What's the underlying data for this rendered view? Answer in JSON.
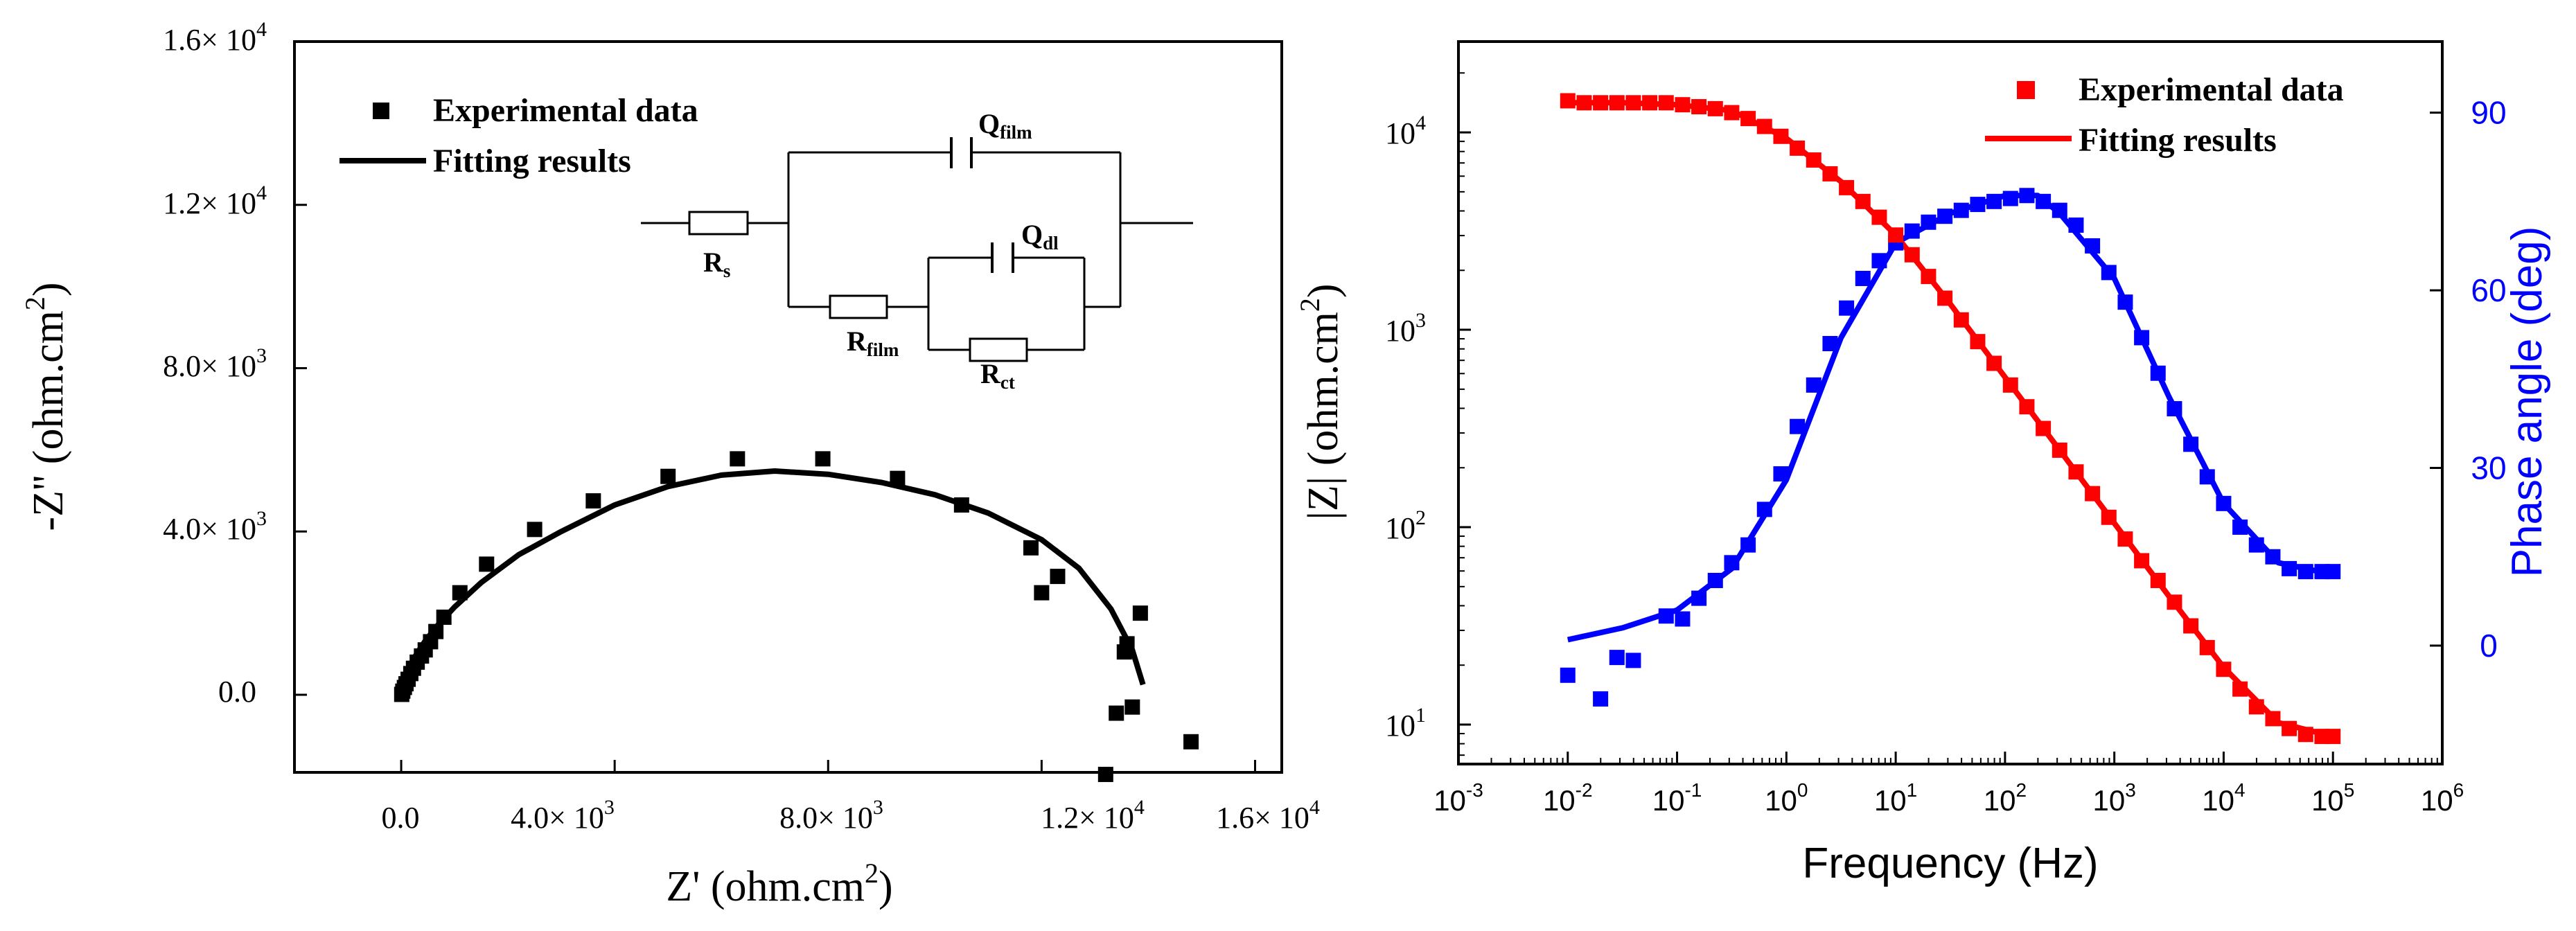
{
  "chart_data": [
    {
      "type": "scatter",
      "title": "",
      "xlabel_main": "Z'",
      "xlabel_unit": "(ohm.cm",
      "xlabel_sup": "2",
      "xlabel_close": ")",
      "ylabel_main": "-Z''",
      "ylabel_unit": "(ohm.cm",
      "ylabel_sup": "2",
      "ylabel_close": ")",
      "xlim": [
        -2000,
        16500
      ],
      "ylim": [
        -1900,
        16000
      ],
      "xtick_values": [
        0,
        4000,
        8000,
        12000,
        16000
      ],
      "ytick_values": [
        0,
        4000,
        8000,
        12000,
        16000
      ],
      "x_ticks": [
        {
          "mant": "0.0",
          "exp": ""
        },
        {
          "mant": "4.0",
          "exp": "3"
        },
        {
          "mant": "8.0",
          "exp": "3"
        },
        {
          "mant": "1.2",
          "exp": "4"
        },
        {
          "mant": "1.6",
          "exp": "4"
        }
      ],
      "y_ticks": [
        {
          "mant": "0.0",
          "exp": ""
        },
        {
          "mant": "4.0",
          "exp": "3"
        },
        {
          "mant": "8.0",
          "exp": "3"
        },
        {
          "mant": "1.2",
          "exp": "4"
        },
        {
          "mant": "1.6",
          "exp": "4"
        }
      ],
      "times": "× 10",
      "legend": [
        {
          "label": "Experimental data",
          "marker": "square"
        },
        {
          "label": "Fitting results",
          "marker": "line"
        }
      ],
      "circuit": {
        "rs_main": "R",
        "rs_sub": "s",
        "qfilm_main": "Q",
        "qfilm_sub": "film",
        "rfilm_main": "R",
        "rfilm_sub": "film",
        "qdl_main": "Q",
        "qdl_sub": "dl",
        "rct_main": "R",
        "rct_sub": "ct"
      },
      "series": [
        {
          "name": "Experimental data",
          "points": [
            [
              10,
              10
            ],
            [
              30,
              90
            ],
            [
              60,
              180
            ],
            [
              90,
              270
            ],
            [
              130,
              380
            ],
            [
              180,
              520
            ],
            [
              230,
              650
            ],
            [
              300,
              800
            ],
            [
              380,
              950
            ],
            [
              450,
              1100
            ],
            [
              550,
              1300
            ],
            [
              650,
              1550
            ],
            [
              800,
              1900
            ],
            [
              1100,
              2500
            ],
            [
              1600,
              3200
            ],
            [
              2500,
              4050
            ],
            [
              3600,
              4750
            ],
            [
              5000,
              5350
            ],
            [
              6300,
              5780
            ],
            [
              7900,
              5780
            ],
            [
              9300,
              5300
            ],
            [
              10500,
              4650
            ],
            [
              11800,
              3600
            ],
            [
              12000,
              2500
            ],
            [
              12300,
              2900
            ],
            [
              13200,
              -1950
            ],
            [
              13400,
              -450
            ],
            [
              13550,
              1050
            ],
            [
              13600,
              1250
            ],
            [
              13700,
              -300
            ],
            [
              13850,
              2000
            ],
            [
              14800,
              -1150
            ]
          ]
        },
        {
          "name": "Fitting results",
          "points": [
            [
              0,
              0
            ],
            [
              50,
              270
            ],
            [
              120,
              580
            ],
            [
              250,
              920
            ],
            [
              450,
              1320
            ],
            [
              700,
              1730
            ],
            [
              1000,
              2150
            ],
            [
              1500,
              2750
            ],
            [
              2200,
              3430
            ],
            [
              3000,
              4000
            ],
            [
              4000,
              4650
            ],
            [
              5000,
              5100
            ],
            [
              6000,
              5380
            ],
            [
              7000,
              5480
            ],
            [
              8000,
              5400
            ],
            [
              9000,
              5200
            ],
            [
              10000,
              4900
            ],
            [
              11000,
              4450
            ],
            [
              12000,
              3800
            ],
            [
              12700,
              3100
            ],
            [
              13300,
              2100
            ],
            [
              13700,
              1100
            ],
            [
              13900,
              250
            ]
          ]
        }
      ]
    },
    {
      "type": "line",
      "title": "",
      "xlabel": "Frequency (Hz)",
      "ylabel_main": "|Z| (ohm.cm",
      "ylabel_sup": "2",
      "ylabel_close": ")",
      "ylabel_right": "Phase angle (deg)",
      "x_log_range": [
        -3,
        6
      ],
      "y_log_range": [
        0.8,
        4.46
      ],
      "y2lim": [
        -20,
        102
      ],
      "xtick_exps": [
        -3,
        -2,
        -1,
        0,
        1,
        2,
        3,
        4,
        5,
        6
      ],
      "xtick_base": "10",
      "xtick_sups": [
        "-3",
        "-2",
        "-1",
        "0",
        "1",
        "2",
        "3",
        "4",
        "5",
        "6"
      ],
      "ytick_exps": [
        1,
        2,
        3,
        4
      ],
      "ytick_base": "10",
      "ytick_sups": [
        "1",
        "2",
        "3",
        "4"
      ],
      "y2tick_values": [
        0,
        30,
        60,
        90
      ],
      "y2_ticks": [
        "0",
        "30",
        "60",
        "90"
      ],
      "legend": [
        {
          "label": "Experimental data",
          "marker": "square",
          "color": "#ff0000"
        },
        {
          "label": "Fitting results",
          "marker": "line",
          "color": "#ff0000"
        }
      ],
      "colors": {
        "impedance": "#ff0000",
        "phase": "#0000ff"
      },
      "series": [
        {
          "name": "|Z| Experimental data",
          "axis": "left",
          "points": [
            [
              -2,
              4.16
            ],
            [
              -1.85,
              4.15
            ],
            [
              -1.7,
              4.15
            ],
            [
              -1.55,
              4.15
            ],
            [
              -1.4,
              4.15
            ],
            [
              -1.25,
              4.15
            ],
            [
              -1.1,
              4.15
            ],
            [
              -0.95,
              4.14
            ],
            [
              -0.8,
              4.13
            ],
            [
              -0.65,
              4.12
            ],
            [
              -0.5,
              4.1
            ],
            [
              -0.35,
              4.07
            ],
            [
              -0.2,
              4.03
            ],
            [
              -0.05,
              3.98
            ],
            [
              0.1,
              3.92
            ],
            [
              0.25,
              3.86
            ],
            [
              0.4,
              3.79
            ],
            [
              0.55,
              3.72
            ],
            [
              0.7,
              3.65
            ],
            [
              0.85,
              3.57
            ],
            [
              1,
              3.48
            ],
            [
              1.15,
              3.38
            ],
            [
              1.3,
              3.27
            ],
            [
              1.45,
              3.16
            ],
            [
              1.6,
              3.05
            ],
            [
              1.75,
              2.94
            ],
            [
              1.9,
              2.83
            ],
            [
              2.05,
              2.72
            ],
            [
              2.2,
              2.61
            ],
            [
              2.35,
              2.5
            ],
            [
              2.5,
              2.39
            ],
            [
              2.65,
              2.28
            ],
            [
              2.8,
              2.17
            ],
            [
              2.95,
              2.05
            ],
            [
              3.1,
              1.94
            ],
            [
              3.25,
              1.83
            ],
            [
              3.4,
              1.73
            ],
            [
              3.55,
              1.62
            ],
            [
              3.7,
              1.5
            ],
            [
              3.85,
              1.39
            ],
            [
              4,
              1.28
            ],
            [
              4.15,
              1.18
            ],
            [
              4.3,
              1.09
            ],
            [
              4.45,
              1.03
            ],
            [
              4.6,
              0.98
            ],
            [
              4.75,
              0.95
            ],
            [
              4.9,
              0.94
            ],
            [
              5,
              0.94
            ]
          ]
        },
        {
          "name": "|Z| Fitting results",
          "axis": "left",
          "points": [
            [
              -2,
              4.15
            ],
            [
              -1.5,
              4.15
            ],
            [
              -1,
              4.14
            ],
            [
              -0.5,
              4.11
            ],
            [
              0,
              3.97
            ],
            [
              0.5,
              3.75
            ],
            [
              1,
              3.48
            ],
            [
              1.5,
              3.13
            ],
            [
              2,
              2.76
            ],
            [
              2.5,
              2.39
            ],
            [
              3,
              2.02
            ],
            [
              3.5,
              1.65
            ],
            [
              4,
              1.29
            ],
            [
              4.5,
              1.01
            ],
            [
              5,
              0.94
            ]
          ]
        },
        {
          "name": "Phase Experimental data",
          "axis": "right",
          "points": [
            [
              -2,
              -5
            ],
            [
              -1.7,
              -9
            ],
            [
              -1.55,
              -2
            ],
            [
              -1.4,
              -2.5
            ],
            [
              -1.1,
              5
            ],
            [
              -0.95,
              4.5
            ],
            [
              -0.8,
              8
            ],
            [
              -0.65,
              11
            ],
            [
              -0.5,
              14
            ],
            [
              -0.35,
              17
            ],
            [
              -0.2,
              23
            ],
            [
              -0.05,
              29
            ],
            [
              0.1,
              37
            ],
            [
              0.25,
              44
            ],
            [
              0.4,
              51
            ],
            [
              0.55,
              57
            ],
            [
              0.7,
              62
            ],
            [
              0.85,
              65
            ],
            [
              1,
              68
            ],
            [
              1.15,
              70
            ],
            [
              1.3,
              71.5
            ],
            [
              1.45,
              72.5
            ],
            [
              1.6,
              73.5
            ],
            [
              1.75,
              74.5
            ],
            [
              1.9,
              75
            ],
            [
              2.05,
              75.5
            ],
            [
              2.2,
              76
            ],
            [
              2.35,
              75
            ],
            [
              2.5,
              73.5
            ],
            [
              2.65,
              71
            ],
            [
              2.8,
              67.5
            ],
            [
              2.95,
              63
            ],
            [
              3.1,
              58
            ],
            [
              3.25,
              52
            ],
            [
              3.4,
              46
            ],
            [
              3.55,
              40
            ],
            [
              3.7,
              34
            ],
            [
              3.85,
              28.5
            ],
            [
              4,
              24
            ],
            [
              4.15,
              20
            ],
            [
              4.3,
              17
            ],
            [
              4.45,
              15
            ],
            [
              4.6,
              13
            ],
            [
              4.75,
              12.5
            ],
            [
              4.9,
              12.5
            ],
            [
              5,
              12.5
            ]
          ]
        },
        {
          "name": "Phase Fitting results",
          "axis": "right",
          "points": [
            [
              -2,
              1
            ],
            [
              -1.5,
              3
            ],
            [
              -1,
              6
            ],
            [
              -0.5,
              13
            ],
            [
              0,
              28
            ],
            [
              0.5,
              52
            ],
            [
              1,
              68
            ],
            [
              1.5,
              73
            ],
            [
              2,
              76
            ],
            [
              2.3,
              76
            ],
            [
              2.5,
              73
            ],
            [
              3,
              62
            ],
            [
              3.5,
              42
            ],
            [
              4,
              24
            ],
            [
              4.5,
              14
            ],
            [
              5,
              12
            ]
          ]
        }
      ]
    }
  ]
}
